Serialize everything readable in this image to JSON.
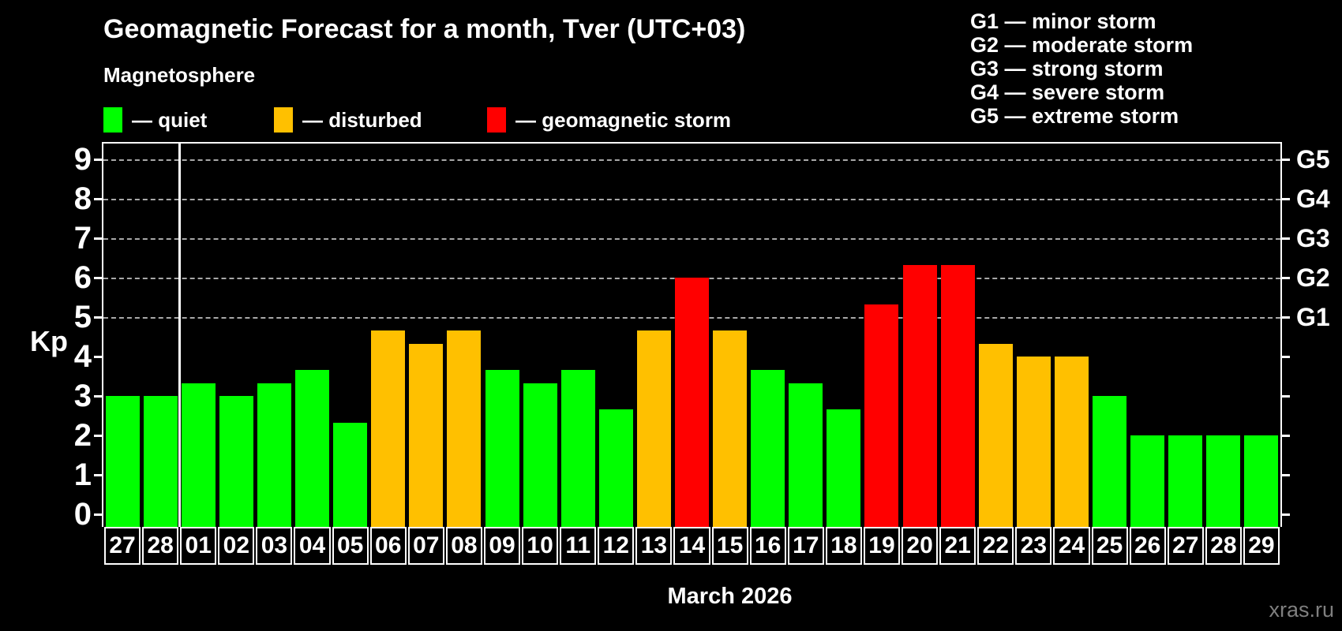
{
  "title": "Geomagnetic Forecast for a month, Tver (UTC+03)",
  "subtitle": "Magnetosphere",
  "legend": {
    "items": [
      {
        "label": "— quiet",
        "color": "#00ff00"
      },
      {
        "label": "— disturbed",
        "color": "#ffc000"
      },
      {
        "label": "— geomagnetic storm",
        "color": "#ff0000"
      }
    ]
  },
  "storm_scale_legend": [
    "G1 — minor storm",
    "G2 — moderate storm",
    "G3 — strong storm",
    "G4 — severe storm",
    "G5 — extreme storm"
  ],
  "y_axis": {
    "label": "Kp",
    "ticks": [
      0,
      1,
      2,
      3,
      4,
      5,
      6,
      7,
      8,
      9
    ]
  },
  "right_axis": {
    "labels": [
      {
        "text": "G1",
        "kp": 5
      },
      {
        "text": "G2",
        "kp": 6
      },
      {
        "text": "G3",
        "kp": 7
      },
      {
        "text": "G4",
        "kp": 8
      },
      {
        "text": "G5",
        "kp": 9
      }
    ]
  },
  "x_axis": {
    "month_label": "March 2026"
  },
  "watermark": "xras.ru",
  "chart_data": {
    "type": "bar",
    "title": "Geomagnetic Forecast for a month, Tver (UTC+03)",
    "ylabel": "Kp",
    "xlabel": "March 2026",
    "ylim": [
      0,
      9
    ],
    "grid_levels": [
      5,
      6,
      7,
      8,
      9
    ],
    "grid_style": "dashed",
    "prev_month_days": 2,
    "categories": [
      "27",
      "28",
      "01",
      "02",
      "03",
      "04",
      "05",
      "06",
      "07",
      "08",
      "09",
      "10",
      "11",
      "12",
      "13",
      "14",
      "15",
      "16",
      "17",
      "18",
      "19",
      "20",
      "21",
      "22",
      "23",
      "24",
      "25",
      "26",
      "27",
      "28",
      "29"
    ],
    "values": [
      3,
      3,
      3.33,
      3,
      3.33,
      3.67,
      2.33,
      4.67,
      4.33,
      4.67,
      3.67,
      3.33,
      3.67,
      2.67,
      4.67,
      6,
      4.67,
      3.67,
      3.33,
      2.67,
      5.33,
      6.33,
      6.33,
      4.33,
      4,
      4,
      3,
      2,
      2,
      2,
      2
    ],
    "color_rules": {
      "quiet_below": 4,
      "disturbed_below": 5
    },
    "colors": {
      "quiet": "#00ff00",
      "disturbed": "#ffc000",
      "storm": "#ff0000"
    }
  }
}
